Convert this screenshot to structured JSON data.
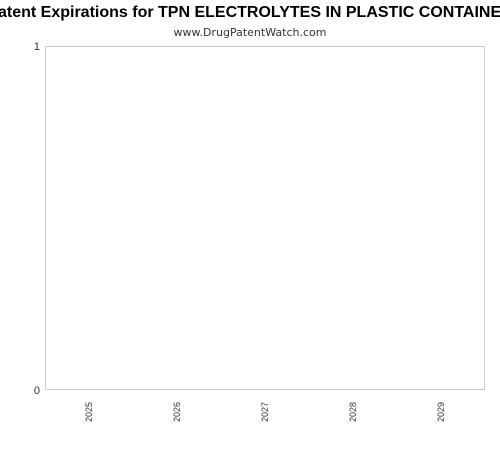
{
  "chart_data": {
    "type": "bar",
    "title": "Patent Expirations for TPN ELECTROLYTES IN PLASTIC CONTAINER",
    "subtitle": "www.DrugPatentWatch.com",
    "categories": [
      "2025",
      "2026",
      "2027",
      "2028",
      "2029"
    ],
    "series": [
      {
        "values": [
          0,
          0,
          0,
          0,
          0
        ]
      }
    ],
    "xlabel": "",
    "ylabel": "",
    "ylim": [
      0,
      1
    ],
    "yticks": [
      "0",
      "1"
    ],
    "grid": false,
    "legend": "none",
    "colors": {
      "plot_border": "#cccccc",
      "text": "#333333",
      "title": "#000000"
    }
  }
}
